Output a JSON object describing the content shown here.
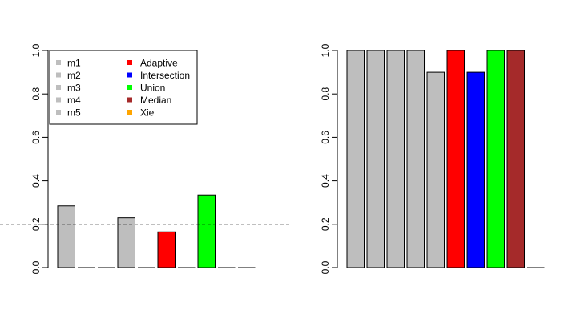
{
  "chart_data": [
    {
      "type": "bar",
      "categories": [
        "m1",
        "m2",
        "m3",
        "m4",
        "m5",
        "Adaptive",
        "Intersection",
        "Union",
        "Median",
        "Xie"
      ],
      "values": [
        0.285,
        0,
        0,
        0.23,
        0,
        0.165,
        0,
        0.335,
        0,
        0
      ],
      "colors": [
        "#bebebe",
        "#bebebe",
        "#bebebe",
        "#bebebe",
        "#bebebe",
        "#ff0000",
        "#0000ff",
        "#00ff00",
        "#a52a2a",
        "#ffa500"
      ],
      "ylim": [
        0,
        1
      ],
      "yticks": [
        "0.0",
        "0.2",
        "0.4",
        "0.6",
        "0.8",
        "1.0"
      ],
      "reference_line": 0.2,
      "reference_line_style": "dashed",
      "legend": {
        "placement": "top-left",
        "columns": [
          [
            {
              "label": "m1",
              "color": "#bebebe"
            },
            {
              "label": "m2",
              "color": "#bebebe"
            },
            {
              "label": "m3",
              "color": "#bebebe"
            },
            {
              "label": "m4",
              "color": "#bebebe"
            },
            {
              "label": "m5",
              "color": "#bebebe"
            }
          ],
          [
            {
              "label": "Adaptive",
              "color": "#ff0000"
            },
            {
              "label": "Intersection",
              "color": "#0000ff"
            },
            {
              "label": "Union",
              "color": "#00ff00"
            },
            {
              "label": "Median",
              "color": "#a52a2a"
            },
            {
              "label": "Xie",
              "color": "#ffa500"
            }
          ]
        ]
      },
      "title": "",
      "xlabel": "",
      "ylabel": ""
    },
    {
      "type": "bar",
      "categories": [
        "m1",
        "m2",
        "m3",
        "m4",
        "m5",
        "Adaptive",
        "Intersection",
        "Union",
        "Median",
        "Xie"
      ],
      "values": [
        1.0,
        1.0,
        1.0,
        1.0,
        0.9,
        1.0,
        0.9,
        1.0,
        1.0,
        0
      ],
      "colors": [
        "#bebebe",
        "#bebebe",
        "#bebebe",
        "#bebebe",
        "#bebebe",
        "#ff0000",
        "#0000ff",
        "#00ff00",
        "#a52a2a",
        "#ffa500"
      ],
      "ylim": [
        0,
        1
      ],
      "yticks": [
        "0.0",
        "0.2",
        "0.4",
        "0.6",
        "0.8",
        "1.0"
      ],
      "title": "",
      "xlabel": "",
      "ylabel": ""
    }
  ]
}
